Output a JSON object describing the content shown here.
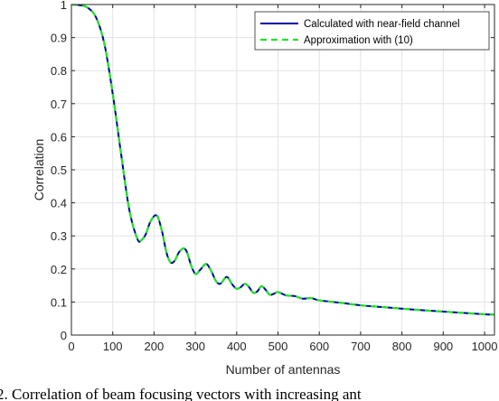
{
  "chart_data": {
    "type": "line",
    "xlabel": "Number of antennas",
    "ylabel": "Correlation",
    "xlim": [
      0,
      1024
    ],
    "ylim": [
      0,
      1
    ],
    "x_ticks": [
      "0",
      "100",
      "200",
      "300",
      "400",
      "500",
      "600",
      "700",
      "800",
      "900",
      "1000"
    ],
    "y_ticks": [
      "0",
      "0.1",
      "0.2",
      "0.3",
      "0.4",
      "0.5",
      "0.6",
      "0.7",
      "0.8",
      "0.9",
      "1"
    ],
    "grid": true,
    "legend_position": "top-right",
    "series": [
      {
        "name": "Calculated with near-field channel",
        "color": "#0000a8",
        "style": "solid",
        "x": [
          0,
          20,
          40,
          60,
          80,
          100,
          120,
          140,
          160,
          170,
          180,
          190,
          200,
          205,
          210,
          220,
          230,
          240,
          250,
          260,
          270,
          275,
          280,
          290,
          300,
          310,
          320,
          325,
          330,
          340,
          350,
          360,
          370,
          375,
          380,
          390,
          400,
          410,
          420,
          430,
          440,
          450,
          460,
          470,
          480,
          490,
          500,
          520,
          540,
          560,
          580,
          600,
          650,
          700,
          750,
          800,
          850,
          900,
          950,
          1000,
          1024
        ],
        "y": [
          1.0,
          0.998,
          0.99,
          0.96,
          0.88,
          0.73,
          0.55,
          0.38,
          0.29,
          0.288,
          0.305,
          0.34,
          0.36,
          0.362,
          0.355,
          0.31,
          0.25,
          0.22,
          0.225,
          0.25,
          0.262,
          0.26,
          0.25,
          0.21,
          0.185,
          0.195,
          0.21,
          0.215,
          0.212,
          0.19,
          0.163,
          0.155,
          0.17,
          0.176,
          0.172,
          0.152,
          0.14,
          0.145,
          0.155,
          0.145,
          0.128,
          0.132,
          0.148,
          0.137,
          0.122,
          0.125,
          0.13,
          0.12,
          0.118,
          0.11,
          0.112,
          0.105,
          0.098,
          0.09,
          0.085,
          0.08,
          0.075,
          0.071,
          0.067,
          0.063,
          0.062
        ]
      },
      {
        "name": "Approximation with (10)",
        "color": "#22e322",
        "style": "dashed",
        "x": [
          0,
          20,
          40,
          60,
          80,
          100,
          120,
          140,
          160,
          170,
          180,
          190,
          200,
          205,
          210,
          220,
          230,
          240,
          250,
          260,
          270,
          275,
          280,
          290,
          300,
          310,
          320,
          325,
          330,
          340,
          350,
          360,
          370,
          375,
          380,
          390,
          400,
          410,
          420,
          430,
          440,
          450,
          460,
          470,
          480,
          490,
          500,
          520,
          540,
          560,
          580,
          600,
          650,
          700,
          750,
          800,
          850,
          900,
          950,
          1000,
          1024
        ],
        "y": [
          1.0,
          0.998,
          0.99,
          0.96,
          0.88,
          0.73,
          0.55,
          0.38,
          0.29,
          0.288,
          0.305,
          0.34,
          0.36,
          0.362,
          0.355,
          0.31,
          0.25,
          0.22,
          0.225,
          0.25,
          0.262,
          0.26,
          0.25,
          0.21,
          0.185,
          0.195,
          0.21,
          0.215,
          0.212,
          0.19,
          0.163,
          0.155,
          0.17,
          0.176,
          0.172,
          0.152,
          0.14,
          0.145,
          0.155,
          0.145,
          0.128,
          0.132,
          0.148,
          0.137,
          0.122,
          0.125,
          0.13,
          0.12,
          0.118,
          0.11,
          0.112,
          0.105,
          0.098,
          0.09,
          0.085,
          0.08,
          0.075,
          0.071,
          0.067,
          0.063,
          0.062
        ]
      }
    ]
  },
  "caption": "2.   Correlation of beam focusing vectors with increasing ant"
}
